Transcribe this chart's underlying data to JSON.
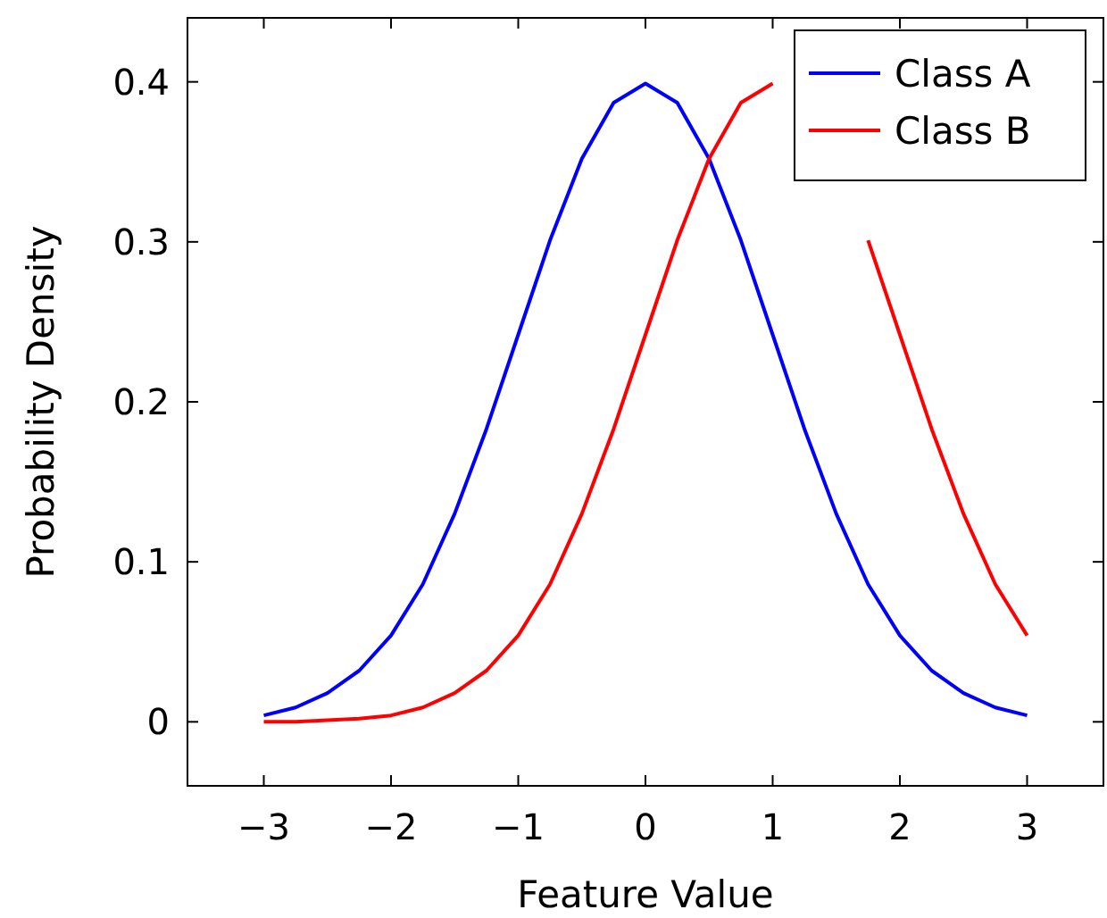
{
  "chart_data": {
    "type": "line",
    "xlabel": "Feature Value",
    "ylabel": "Probability Density",
    "x": [
      -3,
      -2.75,
      -2.5,
      -2.25,
      -2,
      -1.75,
      -1.5,
      -1.25,
      -1,
      -0.75,
      -0.5,
      -0.25,
      0,
      0.25,
      0.5,
      0.75,
      1,
      1.25,
      1.5,
      1.75,
      2,
      2.25,
      2.5,
      2.75,
      3
    ],
    "series": [
      {
        "name": "Class A",
        "color": "#0000ff",
        "values": [
          0.004,
          0.009,
          0.018,
          0.032,
          0.054,
          0.086,
          0.13,
          0.183,
          0.242,
          0.301,
          0.352,
          0.387,
          0.399,
          0.387,
          0.352,
          0.301,
          0.242,
          0.183,
          0.13,
          0.086,
          0.054,
          0.032,
          0.018,
          0.009,
          0.004
        ]
      },
      {
        "name": "Class B",
        "color": "#ff0000",
        "values": [
          0.0,
          0.0,
          0.001,
          0.002,
          0.004,
          0.009,
          0.018,
          0.032,
          0.054,
          0.086,
          0.13,
          0.183,
          0.242,
          0.301,
          0.352,
          0.387,
          0.399,
          null,
          null,
          0.301,
          0.242,
          0.183,
          0.13,
          0.086,
          0.054
        ]
      }
    ],
    "xlim": [
      -3.6,
      3.6
    ],
    "ylim": [
      -0.04,
      0.44
    ],
    "xticks": [
      {
        "value": -3,
        "label": "−3"
      },
      {
        "value": -2,
        "label": "−2"
      },
      {
        "value": -1,
        "label": "−1"
      },
      0,
      1,
      2,
      3
    ],
    "yticks": [
      0,
      0.1,
      0.2,
      0.3,
      0.4
    ],
    "legend": "top right",
    "grid": false,
    "marker": "none",
    "line_style": "solid"
  }
}
